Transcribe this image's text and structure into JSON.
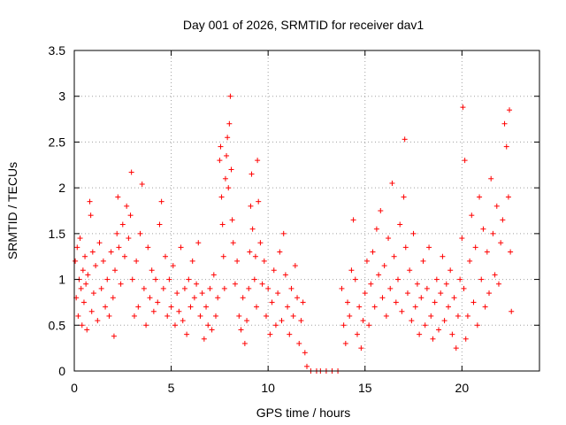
{
  "chart_data": {
    "type": "scatter",
    "title": "Day 001 of 2026, SRMTID for receiver dav1",
    "xlabel": "GPS time / hours",
    "ylabel": "SRMTID / TECUs",
    "xlim": [
      0,
      24
    ],
    "ylim": [
      0,
      3.5
    ],
    "x_ticks": [
      0,
      5,
      10,
      15,
      20
    ],
    "y_ticks": [
      0,
      0.5,
      1,
      1.5,
      2,
      2.5,
      3,
      3.5
    ],
    "x_tick_labels": [
      "0",
      "5",
      "10",
      "15",
      "20"
    ],
    "y_tick_labels": [
      "0",
      "0.5",
      "1",
      "1.5",
      "2",
      "2.5",
      "3",
      "3.5"
    ],
    "grid": true,
    "series": [
      {
        "name": "SRMTID",
        "color": "#ff0000",
        "marker": "plus",
        "points": [
          [
            0.05,
            1.2
          ],
          [
            0.1,
            0.8
          ],
          [
            0.15,
            1.35
          ],
          [
            0.2,
            0.6
          ],
          [
            0.25,
            1.0
          ],
          [
            0.3,
            1.45
          ],
          [
            0.35,
            0.9
          ],
          [
            0.4,
            0.5
          ],
          [
            0.45,
            1.1
          ],
          [
            0.5,
            0.75
          ],
          [
            0.55,
            1.25
          ],
          [
            0.6,
            0.95
          ],
          [
            0.65,
            0.45
          ],
          [
            0.7,
            1.05
          ],
          [
            0.8,
            1.85
          ],
          [
            0.85,
            1.7
          ],
          [
            0.9,
            0.65
          ],
          [
            0.95,
            1.3
          ],
          [
            1.0,
            0.85
          ],
          [
            1.1,
            1.15
          ],
          [
            1.2,
            0.55
          ],
          [
            1.3,
            1.4
          ],
          [
            1.4,
            0.9
          ],
          [
            1.5,
            1.2
          ],
          [
            1.6,
            0.7
          ],
          [
            1.7,
            1.0
          ],
          [
            1.8,
            0.6
          ],
          [
            1.9,
            1.3
          ],
          [
            2.0,
            0.8
          ],
          [
            2.05,
            0.38
          ],
          [
            2.1,
            1.1
          ],
          [
            2.2,
            1.5
          ],
          [
            2.25,
            1.9
          ],
          [
            2.3,
            1.35
          ],
          [
            2.4,
            0.95
          ],
          [
            2.5,
            1.6
          ],
          [
            2.6,
            1.25
          ],
          [
            2.7,
            1.8
          ],
          [
            2.8,
            1.45
          ],
          [
            2.9,
            1.7
          ],
          [
            2.95,
            2.17
          ],
          [
            3.0,
            1.0
          ],
          [
            3.1,
            0.6
          ],
          [
            3.2,
            1.2
          ],
          [
            3.3,
            0.7
          ],
          [
            3.4,
            1.5
          ],
          [
            3.5,
            2.04
          ],
          [
            3.6,
            0.9
          ],
          [
            3.7,
            0.5
          ],
          [
            3.8,
            1.35
          ],
          [
            3.9,
            0.8
          ],
          [
            4.0,
            1.1
          ],
          [
            4.1,
            0.65
          ],
          [
            4.2,
            1.0
          ],
          [
            4.3,
            0.75
          ],
          [
            4.4,
            1.6
          ],
          [
            4.5,
            1.85
          ],
          [
            4.6,
            0.9
          ],
          [
            4.7,
            1.25
          ],
          [
            4.8,
            0.6
          ],
          [
            4.9,
            1.0
          ],
          [
            5.0,
            0.7
          ],
          [
            5.1,
            1.15
          ],
          [
            5.2,
            0.5
          ],
          [
            5.3,
            0.85
          ],
          [
            5.4,
            0.65
          ],
          [
            5.5,
            1.35
          ],
          [
            5.6,
            0.55
          ],
          [
            5.7,
            0.9
          ],
          [
            5.8,
            0.4
          ],
          [
            5.9,
            1.0
          ],
          [
            6.0,
            0.7
          ],
          [
            6.1,
            1.2
          ],
          [
            6.2,
            0.8
          ],
          [
            6.3,
            0.95
          ],
          [
            6.4,
            1.4
          ],
          [
            6.5,
            0.6
          ],
          [
            6.6,
            0.85
          ],
          [
            6.7,
            0.35
          ],
          [
            6.8,
            0.7
          ],
          [
            6.9,
            0.5
          ],
          [
            7.0,
            0.9
          ],
          [
            7.1,
            0.45
          ],
          [
            7.2,
            1.05
          ],
          [
            7.3,
            0.6
          ],
          [
            7.4,
            0.8
          ],
          [
            7.5,
            2.3
          ],
          [
            7.55,
            2.45
          ],
          [
            7.6,
            1.9
          ],
          [
            7.65,
            1.6
          ],
          [
            7.7,
            1.25
          ],
          [
            7.75,
            0.9
          ],
          [
            7.8,
            2.1
          ],
          [
            7.85,
            2.35
          ],
          [
            7.9,
            2.55
          ],
          [
            7.95,
            2.0
          ],
          [
            8.0,
            2.7
          ],
          [
            8.05,
            3.0
          ],
          [
            8.1,
            2.2
          ],
          [
            8.15,
            1.65
          ],
          [
            8.2,
            1.4
          ],
          [
            8.3,
            0.95
          ],
          [
            8.4,
            1.2
          ],
          [
            8.5,
            0.6
          ],
          [
            8.6,
            0.45
          ],
          [
            8.7,
            0.8
          ],
          [
            8.8,
            0.3
          ],
          [
            8.9,
            0.55
          ],
          [
            9.0,
            0.9
          ],
          [
            9.05,
            1.3
          ],
          [
            9.1,
            1.8
          ],
          [
            9.15,
            2.15
          ],
          [
            9.2,
            1.55
          ],
          [
            9.3,
            1.0
          ],
          [
            9.35,
            1.25
          ],
          [
            9.4,
            0.7
          ],
          [
            9.45,
            2.3
          ],
          [
            9.5,
            1.85
          ],
          [
            9.6,
            1.4
          ],
          [
            9.7,
            0.95
          ],
          [
            9.8,
            1.2
          ],
          [
            9.9,
            0.6
          ],
          [
            10.0,
            0.9
          ],
          [
            10.1,
            0.4
          ],
          [
            10.2,
            0.75
          ],
          [
            10.3,
            1.1
          ],
          [
            10.4,
            0.5
          ],
          [
            10.5,
            0.85
          ],
          [
            10.6,
            1.3
          ],
          [
            10.7,
            0.55
          ],
          [
            10.8,
            1.5
          ],
          [
            10.9,
            1.05
          ],
          [
            11.0,
            0.7
          ],
          [
            11.1,
            0.4
          ],
          [
            11.2,
            0.9
          ],
          [
            11.3,
            0.6
          ],
          [
            11.4,
            1.15
          ],
          [
            11.5,
            0.8
          ],
          [
            11.6,
            0.3
          ],
          [
            11.7,
            0.55
          ],
          [
            11.8,
            0.75
          ],
          [
            11.9,
            0.2
          ],
          [
            12.0,
            0.05
          ],
          [
            12.2,
            0.0
          ],
          [
            12.5,
            0.0
          ],
          [
            12.7,
            0.0
          ],
          [
            13.0,
            0.0
          ],
          [
            13.3,
            0.0
          ],
          [
            13.6,
            0.0
          ],
          [
            13.8,
            0.9
          ],
          [
            13.9,
            0.5
          ],
          [
            14.0,
            0.3
          ],
          [
            14.1,
            0.75
          ],
          [
            14.2,
            0.6
          ],
          [
            14.3,
            1.1
          ],
          [
            14.4,
            1.65
          ],
          [
            14.5,
            1.0
          ],
          [
            14.6,
            0.4
          ],
          [
            14.7,
            0.7
          ],
          [
            14.8,
            0.25
          ],
          [
            14.9,
            0.55
          ],
          [
            15.0,
            0.85
          ],
          [
            15.1,
            1.2
          ],
          [
            15.2,
            0.5
          ],
          [
            15.3,
            0.95
          ],
          [
            15.4,
            1.3
          ],
          [
            15.5,
            0.7
          ],
          [
            15.6,
            1.55
          ],
          [
            15.7,
            1.05
          ],
          [
            15.8,
            1.75
          ],
          [
            15.9,
            0.8
          ],
          [
            16.0,
            1.15
          ],
          [
            16.1,
            0.6
          ],
          [
            16.2,
            1.45
          ],
          [
            16.3,
            0.9
          ],
          [
            16.4,
            2.05
          ],
          [
            16.5,
            1.25
          ],
          [
            16.6,
            0.75
          ],
          [
            16.7,
            1.0
          ],
          [
            16.8,
            1.6
          ],
          [
            16.9,
            0.65
          ],
          [
            17.0,
            1.9
          ],
          [
            17.05,
            2.53
          ],
          [
            17.1,
            1.35
          ],
          [
            17.2,
            0.85
          ],
          [
            17.3,
            1.1
          ],
          [
            17.4,
            0.55
          ],
          [
            17.5,
            1.5
          ],
          [
            17.6,
            0.7
          ],
          [
            17.7,
            0.95
          ],
          [
            17.8,
            0.4
          ],
          [
            17.9,
            0.8
          ],
          [
            18.0,
            1.2
          ],
          [
            18.1,
            0.5
          ],
          [
            18.2,
            0.9
          ],
          [
            18.3,
            1.35
          ],
          [
            18.4,
            0.6
          ],
          [
            18.5,
            0.35
          ],
          [
            18.6,
            0.75
          ],
          [
            18.7,
            1.0
          ],
          [
            18.8,
            0.45
          ],
          [
            18.9,
            0.85
          ],
          [
            19.0,
            1.25
          ],
          [
            19.1,
            0.55
          ],
          [
            19.2,
            0.95
          ],
          [
            19.3,
            0.7
          ],
          [
            19.4,
            1.1
          ],
          [
            19.5,
            0.4
          ],
          [
            19.6,
            0.8
          ],
          [
            19.7,
            0.25
          ],
          [
            19.8,
            0.6
          ],
          [
            19.9,
            1.0
          ],
          [
            20.0,
            1.45
          ],
          [
            20.05,
            2.88
          ],
          [
            20.1,
            0.9
          ],
          [
            20.15,
            2.3
          ],
          [
            20.2,
            0.35
          ],
          [
            20.3,
            0.6
          ],
          [
            20.4,
            1.2
          ],
          [
            20.5,
            1.7
          ],
          [
            20.6,
            0.75
          ],
          [
            20.7,
            1.35
          ],
          [
            20.8,
            0.5
          ],
          [
            20.9,
            1.9
          ],
          [
            21.0,
            1.0
          ],
          [
            21.1,
            1.55
          ],
          [
            21.2,
            0.7
          ],
          [
            21.3,
            1.3
          ],
          [
            21.4,
            0.85
          ],
          [
            21.5,
            2.1
          ],
          [
            21.6,
            1.5
          ],
          [
            21.7,
            1.05
          ],
          [
            21.8,
            1.8
          ],
          [
            21.9,
            0.95
          ],
          [
            22.0,
            1.4
          ],
          [
            22.1,
            1.65
          ],
          [
            22.2,
            2.7
          ],
          [
            22.3,
            2.45
          ],
          [
            22.4,
            1.9
          ],
          [
            22.45,
            2.85
          ],
          [
            22.5,
            1.3
          ],
          [
            22.55,
            0.65
          ]
        ]
      }
    ]
  }
}
